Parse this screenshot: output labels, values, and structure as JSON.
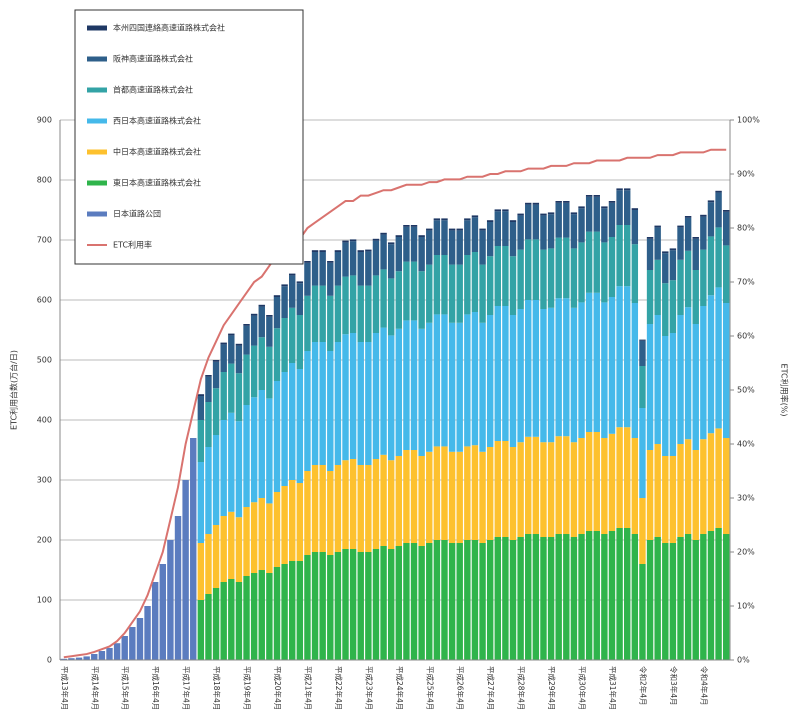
{
  "chart_data": {
    "type": "bar",
    "ylabel": "ETC利用台数(万台/日)",
    "y2label": "ETC利用率(%)",
    "ylim": [
      0,
      900
    ],
    "yticks": [
      0,
      100,
      200,
      300,
      400,
      500,
      600,
      700,
      800,
      900
    ],
    "y2lim": [
      0,
      100
    ],
    "y2ticks": [
      {
        "value": 0,
        "label": "0%"
      },
      {
        "value": 10,
        "label": "10%"
      },
      {
        "value": 20,
        "label": "20%"
      },
      {
        "value": 30,
        "label": "30%"
      },
      {
        "value": 40,
        "label": "40%"
      },
      {
        "value": 50,
        "label": "50%"
      },
      {
        "value": 60,
        "label": "60%"
      },
      {
        "value": 70,
        "label": "70%"
      },
      {
        "value": 80,
        "label": "80%"
      },
      {
        "value": 90,
        "label": "90%"
      },
      {
        "value": 100,
        "label": "100%"
      }
    ],
    "grid": true,
    "legend": "upper left",
    "categories": [
      "平成13年4月",
      null,
      null,
      null,
      "平成14年4月",
      null,
      null,
      null,
      "平成15年4月",
      null,
      null,
      null,
      "平成16年4月",
      null,
      null,
      null,
      "平成17年4月",
      null,
      null,
      null,
      "平成18年4月",
      null,
      null,
      null,
      "平成19年4月",
      null,
      null,
      null,
      "平成20年4月",
      null,
      null,
      null,
      "平成21年4月",
      null,
      null,
      null,
      "平成22年4月",
      null,
      null,
      null,
      "平成23年4月",
      null,
      null,
      null,
      "平成24年4月",
      null,
      null,
      null,
      "平成25年4月",
      null,
      null,
      null,
      "平成26年4月",
      null,
      null,
      null,
      "平成27年4月",
      null,
      null,
      null,
      "平成28年4月",
      null,
      null,
      null,
      "平成29年4月",
      null,
      null,
      null,
      "平成30年4月",
      null,
      null,
      null,
      "平成31年4月",
      null,
      null,
      null,
      "令和2年4月",
      null,
      null,
      null,
      "令和3年4月",
      null,
      null,
      null,
      "令和4年4月",
      null,
      null,
      null
    ],
    "series": [
      {
        "name": "本州四国連絡高速道路株式会社",
        "color": "#1f3864",
        "type": "bar",
        "values": [
          null,
          null,
          null,
          null,
          null,
          null,
          null,
          null,
          null,
          null,
          null,
          null,
          null,
          null,
          null,
          null,
          null,
          null,
          3,
          3,
          3,
          3,
          3,
          3,
          3,
          3,
          3,
          3,
          3,
          3,
          3,
          3,
          3,
          3,
          3,
          3,
          3,
          3,
          3,
          3,
          3,
          3,
          3,
          3,
          3,
          3,
          3,
          3,
          3,
          3,
          3,
          3,
          3,
          3,
          3,
          3,
          3,
          3,
          3,
          3,
          3,
          3,
          3,
          3,
          3,
          3,
          3,
          3,
          3,
          3,
          3,
          3,
          3,
          3,
          3,
          3,
          2,
          3,
          3,
          3,
          3,
          3,
          3,
          3,
          3,
          3,
          3,
          3
        ]
      },
      {
        "name": "阪神高速道路株式会社",
        "color": "#2e5f8a",
        "type": "bar",
        "values": [
          null,
          null,
          null,
          null,
          null,
          null,
          null,
          null,
          null,
          null,
          null,
          null,
          null,
          null,
          null,
          null,
          null,
          null,
          40,
          42,
          44,
          46,
          47,
          46,
          48,
          50,
          51,
          50,
          52,
          53,
          54,
          53,
          55,
          56,
          56,
          55,
          56,
          57,
          57,
          56,
          57,
          58,
          58,
          57,
          57,
          58,
          58,
          57,
          57,
          58,
          58,
          57,
          57,
          58,
          58,
          57,
          57,
          58,
          58,
          57,
          57,
          58,
          58,
          57,
          57,
          58,
          58,
          57,
          57,
          58,
          58,
          57,
          57,
          58,
          58,
          57,
          42,
          52,
          54,
          50,
          50,
          54,
          55,
          52,
          55,
          57,
          58,
          56
        ]
      },
      {
        "name": "首都高速道路株式会社",
        "color": "#33a3a6",
        "type": "bar",
        "values": [
          null,
          null,
          null,
          null,
          null,
          null,
          null,
          null,
          null,
          null,
          null,
          null,
          null,
          null,
          null,
          null,
          null,
          null,
          70,
          75,
          78,
          80,
          82,
          80,
          84,
          86,
          88,
          86,
          88,
          90,
          92,
          90,
          92,
          94,
          94,
          92,
          94,
          96,
          96,
          94,
          94,
          96,
          97,
          95,
          96,
          98,
          98,
          96,
          97,
          99,
          99,
          97,
          97,
          99,
          100,
          97,
          98,
          100,
          100,
          98,
          99,
          101,
          101,
          99,
          99,
          101,
          101,
          99,
          100,
          102,
          102,
          100,
          100,
          102,
          102,
          98,
          70,
          90,
          92,
          88,
          88,
          92,
          94,
          90,
          94,
          98,
          100,
          96
        ]
      },
      {
        "name": "西日本高速道路株式会社",
        "color": "#45b9ea",
        "type": "bar",
        "values": [
          null,
          null,
          null,
          null,
          null,
          null,
          null,
          null,
          null,
          null,
          null,
          null,
          null,
          null,
          null,
          null,
          null,
          null,
          135,
          145,
          150,
          160,
          165,
          160,
          170,
          175,
          180,
          175,
          185,
          190,
          195,
          190,
          200,
          205,
          205,
          200,
          205,
          210,
          210,
          205,
          205,
          210,
          212,
          208,
          212,
          216,
          216,
          212,
          215,
          220,
          220,
          215,
          215,
          220,
          222,
          215,
          220,
          225,
          225,
          220,
          222,
          228,
          228,
          222,
          224,
          230,
          230,
          224,
          226,
          232,
          232,
          226,
          228,
          235,
          235,
          225,
          150,
          210,
          215,
          200,
          205,
          215,
          220,
          210,
          222,
          230,
          235,
          225
        ]
      },
      {
        "name": "中日本高速道路株式会社",
        "color": "#fdc12e",
        "type": "bar",
        "values": [
          null,
          null,
          null,
          null,
          null,
          null,
          null,
          null,
          null,
          null,
          null,
          null,
          null,
          null,
          null,
          null,
          null,
          null,
          95,
          100,
          105,
          110,
          112,
          108,
          115,
          118,
          120,
          116,
          125,
          130,
          135,
          130,
          140,
          145,
          145,
          140,
          145,
          148,
          150,
          145,
          145,
          150,
          152,
          148,
          150,
          155,
          155,
          150,
          152,
          156,
          156,
          152,
          152,
          156,
          158,
          152,
          155,
          160,
          160,
          155,
          158,
          162,
          162,
          158,
          158,
          163,
          163,
          158,
          160,
          165,
          165,
          160,
          162,
          168,
          168,
          160,
          110,
          150,
          155,
          145,
          145,
          155,
          158,
          150,
          158,
          163,
          166,
          160
        ]
      },
      {
        "name": "東日本高速道路株式会社",
        "color": "#2fb44b",
        "type": "bar",
        "values": [
          null,
          null,
          null,
          null,
          null,
          null,
          null,
          null,
          null,
          null,
          null,
          null,
          null,
          null,
          null,
          null,
          null,
          null,
          100,
          110,
          120,
          130,
          135,
          130,
          140,
          145,
          150,
          145,
          155,
          160,
          165,
          165,
          175,
          180,
          180,
          175,
          180,
          185,
          185,
          180,
          180,
          185,
          190,
          185,
          190,
          195,
          195,
          190,
          195,
          200,
          200,
          195,
          195,
          200,
          200,
          195,
          200,
          205,
          205,
          200,
          205,
          210,
          210,
          205,
          205,
          210,
          210,
          205,
          210,
          215,
          215,
          210,
          215,
          220,
          220,
          210,
          160,
          200,
          205,
          195,
          195,
          205,
          210,
          200,
          210,
          215,
          220,
          210
        ]
      },
      {
        "name": "日本道路公団",
        "color": "#5b7cbf",
        "type": "bar",
        "values": [
          2,
          3,
          4,
          6,
          10,
          15,
          20,
          28,
          40,
          55,
          70,
          90,
          130,
          160,
          200,
          240,
          300,
          370,
          null,
          null,
          null,
          null,
          null,
          null,
          null,
          null,
          null,
          null,
          null,
          null,
          null,
          null,
          null,
          null,
          null,
          null,
          null,
          null,
          null,
          null,
          null,
          null,
          null,
          null,
          null,
          null,
          null,
          null,
          null,
          null,
          null,
          null,
          null,
          null,
          null,
          null,
          null,
          null,
          null,
          null,
          null,
          null,
          null,
          null,
          null,
          null,
          null,
          null,
          null,
          null,
          null,
          null,
          null,
          null,
          null,
          null,
          null,
          null,
          null,
          null,
          null,
          null,
          null,
          null,
          null,
          null,
          null,
          null
        ]
      },
      {
        "name": "ETC利用率",
        "color": "#d9736f",
        "type": "line",
        "axis": "y2",
        "values": [
          0.5,
          0.7,
          0.9,
          1.1,
          1.5,
          2,
          2.5,
          3.5,
          5,
          7,
          9,
          12,
          16,
          20,
          26,
          32,
          40,
          46,
          52,
          56,
          59,
          62,
          64,
          66,
          68,
          70,
          71,
          73,
          75,
          76,
          77,
          78,
          80,
          81,
          82,
          83,
          84,
          85,
          85,
          86,
          86,
          86.5,
          87,
          87,
          87.5,
          88,
          88,
          88,
          88.5,
          88.5,
          89,
          89,
          89,
          89.5,
          89.5,
          89.5,
          90,
          90,
          90.5,
          90.5,
          90.5,
          91,
          91,
          91,
          91.5,
          91.5,
          91.5,
          92,
          92,
          92,
          92.5,
          92.5,
          92.5,
          92.5,
          93,
          93,
          93,
          93,
          93.5,
          93.5,
          93.5,
          94,
          94,
          94,
          94,
          94.5,
          94.5,
          94.5
        ]
      }
    ]
  }
}
